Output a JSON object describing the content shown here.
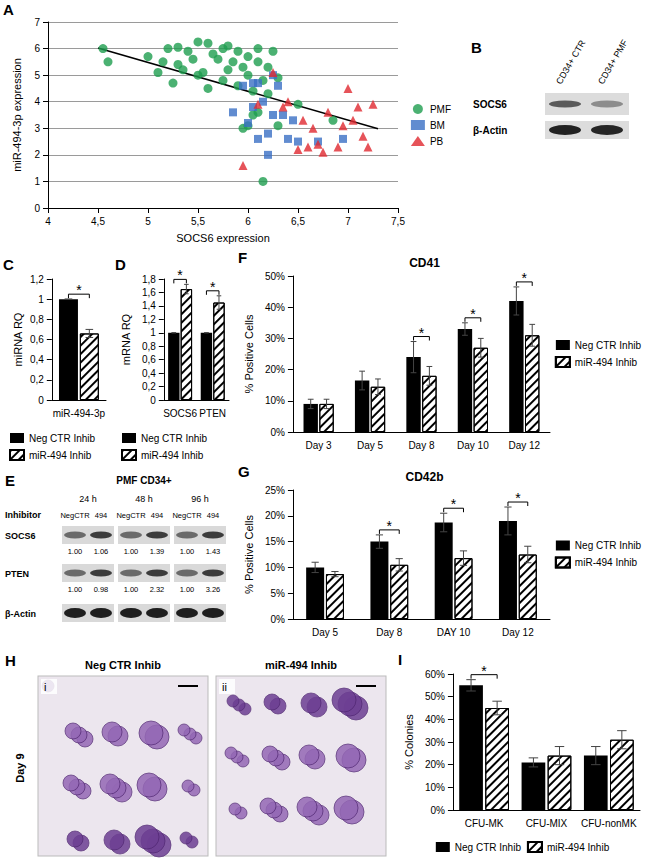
{
  "chart_data": [
    {
      "type": "scatter",
      "panel": "A",
      "x_label": "SOCS6 expression",
      "y_label": "miR-494-3p expression",
      "xlim": [
        4,
        7.5
      ],
      "xticks": [
        4,
        {
          "value": 4.5,
          "label": "4,5"
        },
        5,
        {
          "value": 5.5,
          "label": "5,5"
        },
        6,
        {
          "value": 6.5,
          "label": "6,5"
        },
        7,
        {
          "value": 7.5,
          "label": "7,5"
        }
      ],
      "ylim": [
        0,
        7
      ],
      "yticks": [
        0,
        1,
        2,
        3,
        4,
        5,
        6,
        7
      ],
      "grid": true,
      "legend": "right",
      "series": [
        {
          "name": "PMF",
          "color": "#1e9e4f",
          "marker": "circle",
          "values": [
            [
              4.55,
              6.0
            ],
            [
              4.6,
              5.5
            ],
            [
              5.0,
              5.7
            ],
            [
              5.1,
              5.1
            ],
            [
              5.15,
              5.5
            ],
            [
              5.2,
              6.0
            ],
            [
              5.25,
              4.7
            ],
            [
              5.3,
              5.4
            ],
            [
              5.3,
              6.05
            ],
            [
              5.35,
              5.2
            ],
            [
              5.4,
              5.9
            ],
            [
              5.45,
              5.6
            ],
            [
              5.5,
              6.25
            ],
            [
              5.5,
              5.0
            ],
            [
              5.55,
              5.1
            ],
            [
              5.6,
              6.2
            ],
            [
              5.6,
              4.5
            ],
            [
              5.65,
              5.8
            ],
            [
              5.7,
              5.6
            ],
            [
              5.75,
              6.0
            ],
            [
              5.75,
              4.8
            ],
            [
              5.8,
              5.2
            ],
            [
              5.8,
              6.1
            ],
            [
              5.85,
              5.5
            ],
            [
              5.9,
              5.9
            ],
            [
              5.9,
              4.6
            ],
            [
              5.95,
              5.3
            ],
            [
              6.0,
              5.7
            ],
            [
              6.0,
              5.0
            ],
            [
              6.05,
              4.4
            ],
            [
              6.1,
              5.5
            ],
            [
              6.1,
              6.0
            ],
            [
              6.15,
              4.8
            ],
            [
              6.2,
              5.3
            ],
            [
              6.2,
              4.3
            ],
            [
              6.25,
              5.9
            ],
            [
              6.3,
              4.9
            ],
            [
              5.95,
              3.0
            ],
            [
              6.0,
              3.1
            ],
            [
              6.05,
              3.5
            ],
            [
              6.1,
              3.6
            ],
            [
              6.3,
              3.1
            ],
            [
              6.5,
              3.9
            ],
            [
              6.85,
              3.3
            ],
            [
              6.15,
              1.0
            ]
          ]
        },
        {
          "name": "BM",
          "color": "#3a6fc4",
          "marker": "rect",
          "values": [
            [
              5.85,
              3.6
            ],
            [
              5.95,
              4.6
            ],
            [
              6.0,
              3.2
            ],
            [
              6.05,
              3.8
            ],
            [
              6.05,
              4.7
            ],
            [
              6.1,
              2.6
            ],
            [
              6.1,
              4.7
            ],
            [
              6.15,
              4.0
            ],
            [
              6.2,
              2.8
            ],
            [
              6.2,
              2.0
            ],
            [
              6.25,
              3.5
            ],
            [
              6.25,
              5.0
            ],
            [
              6.3,
              4.6
            ],
            [
              6.35,
              3.5
            ],
            [
              6.4,
              2.6
            ],
            [
              6.45,
              3.3
            ],
            [
              6.5,
              2.5
            ],
            [
              6.7,
              2.5
            ],
            [
              6.95,
              2.6
            ]
          ]
        },
        {
          "name": "PB",
          "color": "#e0282f",
          "marker": "triangle",
          "values": [
            [
              5.95,
              1.6
            ],
            [
              6.1,
              3.9
            ],
            [
              6.25,
              5.1
            ],
            [
              6.35,
              3.8
            ],
            [
              6.4,
              4.0
            ],
            [
              6.5,
              2.2
            ],
            [
              6.55,
              3.3
            ],
            [
              6.6,
              2.3
            ],
            [
              6.65,
              3.0
            ],
            [
              6.7,
              2.4
            ],
            [
              6.75,
              2.1
            ],
            [
              6.8,
              3.6
            ],
            [
              6.9,
              2.3
            ],
            [
              6.95,
              3.1
            ],
            [
              7.0,
              4.5
            ],
            [
              7.05,
              3.3
            ],
            [
              7.1,
              3.8
            ],
            [
              7.15,
              2.7
            ],
            [
              7.2,
              2.3
            ],
            [
              7.25,
              3.9
            ]
          ]
        }
      ],
      "trendline": {
        "x": [
          4.5,
          7.3
        ],
        "y": [
          6.02,
          2.98
        ],
        "color": "#000000"
      }
    },
    {
      "type": "bar",
      "panel": "C",
      "y_label": "miRNA RQ",
      "categories": [
        "miR-494-3p"
      ],
      "ylim": [
        0,
        1.2
      ],
      "yticks": [
        0,
        {
          "value": 0.2,
          "label": "0,2"
        },
        {
          "value": 0.4,
          "label": "0,4"
        },
        {
          "value": 0.6,
          "label": "0,6"
        },
        {
          "value": 0.8,
          "label": "0,8"
        },
        1,
        {
          "value": 1.2,
          "label": "1,2"
        }
      ],
      "grid": false,
      "legend": "bottom",
      "series": [
        {
          "name": "Neg CTR Inhib",
          "color": "#000000",
          "values": [
            1
          ],
          "errors": [
            0
          ]
        },
        {
          "name": "miR-494 Inhib",
          "color": "#ffffff",
          "values": [
            0.66
          ],
          "errors": [
            0.04
          ]
        }
      ],
      "annotations": [
        {
          "category": "miR-494-3p",
          "text": "*"
        }
      ]
    },
    {
      "type": "bar",
      "panel": "D",
      "y_label": "mRNA RQ",
      "categories": [
        "SOCS6",
        "PTEN"
      ],
      "ylim": [
        0,
        1.8
      ],
      "yticks": [
        0,
        {
          "value": 0.2,
          "label": "0,2"
        },
        {
          "value": 0.4,
          "label": "0,4"
        },
        {
          "value": 0.6,
          "label": "0,6"
        },
        {
          "value": 0.8,
          "label": "0,8"
        },
        1,
        {
          "value": 1.2,
          "label": "1,2"
        },
        {
          "value": 1.4,
          "label": "1,4"
        },
        {
          "value": 1.6,
          "label": "1,6"
        },
        {
          "value": 1.8,
          "label": "1,8"
        }
      ],
      "grid": false,
      "legend": "bottom",
      "series": [
        {
          "name": "Neg CTR Inhib",
          "color": "#000000",
          "values": [
            1,
            1
          ],
          "errors": [
            0,
            0
          ]
        },
        {
          "name": "miR-494 Inhib",
          "color": "#ffffff",
          "values": [
            1.65,
            1.45
          ],
          "errors": [
            0.07,
            0.1
          ]
        }
      ],
      "annotations": [
        {
          "category": "SOCS6",
          "text": "*"
        },
        {
          "category": "PTEN",
          "text": "*"
        }
      ]
    },
    {
      "type": "bar",
      "panel": "F",
      "title": "CD41",
      "y_label": "% Positive Cells",
      "categories": [
        "Day 3",
        "Day 5",
        "Day 8",
        "Day 10",
        "Day 12"
      ],
      "ylim": [
        0,
        50
      ],
      "yticks": [
        {
          "value": 0,
          "label": "0%"
        },
        {
          "value": 10,
          "label": "10%"
        },
        {
          "value": 20,
          "label": "20%"
        },
        {
          "value": 30,
          "label": "30%"
        },
        {
          "value": 40,
          "label": "40%"
        },
        {
          "value": 50,
          "label": "50%"
        }
      ],
      "grid": false,
      "legend": "right",
      "series": [
        {
          "name": "Neg CTR Inhib",
          "color": "#000000",
          "values": [
            9,
            16.5,
            24,
            33,
            42
          ],
          "errors": [
            1.5,
            3,
            5,
            2,
            4.5
          ]
        },
        {
          "name": "miR-494 Inhib",
          "color": "#ffffff",
          "values": [
            9,
            14.5,
            18,
            27,
            31
          ],
          "errors": [
            1.5,
            2.5,
            3,
            3,
            3.5
          ]
        }
      ],
      "annotations": [
        {
          "category": "Day 8",
          "text": "*"
        },
        {
          "category": "Day 10",
          "text": "*"
        },
        {
          "category": "Day 12",
          "text": "*"
        }
      ]
    },
    {
      "type": "bar",
      "panel": "G",
      "title": "CD42b",
      "y_label": "% Positive Cells",
      "categories": [
        "Day 5",
        "Day 8",
        "DAY 10",
        "Day 12"
      ],
      "ylim": [
        0,
        25
      ],
      "yticks": [
        {
          "value": 0,
          "label": "0%"
        },
        {
          "value": 5,
          "label": "5%"
        },
        {
          "value": 10,
          "label": "10%"
        },
        {
          "value": 15,
          "label": "15%"
        },
        {
          "value": 20,
          "label": "20%"
        },
        {
          "value": 25,
          "label": "25%"
        }
      ],
      "grid": false,
      "legend": "right",
      "series": [
        {
          "name": "Neg CTR Inhib",
          "color": "#000000",
          "values": [
            10,
            15,
            18.7,
            19
          ],
          "errors": [
            1,
            1.3,
            1.8,
            2.7
          ]
        },
        {
          "name": "miR-494 Inhib",
          "color": "#ffffff",
          "values": [
            8.7,
            10.5,
            11.8,
            12.5
          ],
          "errors": [
            0.5,
            1.2,
            1.4,
            1.6
          ]
        }
      ],
      "annotations": [
        {
          "category": "Day 8",
          "text": "*"
        },
        {
          "category": "DAY 10",
          "text": "*"
        },
        {
          "category": "Day 12",
          "text": "*"
        }
      ]
    },
    {
      "type": "bar",
      "panel": "I",
      "y_label": "% Colonies",
      "categories": [
        "CFU-MK",
        "CFU-MIX",
        "CFU-nonMK"
      ],
      "ylim": [
        0,
        60
      ],
      "yticks": [
        {
          "value": 0,
          "label": "0%"
        },
        {
          "value": 10,
          "label": "10%"
        },
        {
          "value": 20,
          "label": "20%"
        },
        {
          "value": 30,
          "label": "30%"
        },
        {
          "value": 40,
          "label": "40%"
        },
        {
          "value": 50,
          "label": "50%"
        },
        {
          "value": 60,
          "label": "60%"
        }
      ],
      "grid": false,
      "legend": "bottom",
      "series": [
        {
          "name": "Neg CTR Inhib",
          "color": "#000000",
          "values": [
            55,
            21,
            24
          ],
          "errors": [
            2.5,
            2,
            4
          ]
        },
        {
          "name": "miR-494 Inhib",
          "color": "#ffffff",
          "values": [
            45,
            24,
            31
          ],
          "errors": [
            3,
            4,
            4
          ]
        }
      ],
      "annotations": [
        {
          "category": "CFU-MK",
          "text": "*"
        }
      ]
    }
  ],
  "blots": [
    {
      "panel": "B",
      "lanes": [
        "CD34+ CTR",
        "CD34+ PMF"
      ],
      "rows": [
        {
          "label": "SOCS6"
        },
        {
          "label": "β-Actin"
        }
      ]
    },
    {
      "panel": "E",
      "title": "PMF CD34+",
      "lane_header": "Inhibitor",
      "groups": [
        {
          "label": "24 h",
          "lanes": [
            "NegCTR",
            "494"
          ]
        },
        {
          "label": "48 h",
          "lanes": [
            "NegCTR",
            "494"
          ]
        },
        {
          "label": "96 h",
          "lanes": [
            "NegCTR",
            "494"
          ]
        }
      ],
      "rows": [
        {
          "label": "SOCS6",
          "values": [
            "1.00",
            "1.06",
            "1.00",
            "1.39",
            "1.00",
            "1.43"
          ]
        },
        {
          "label": "PTEN",
          "values": [
            "1.00",
            "0.98",
            "1.00",
            "2.32",
            "1.00",
            "3.26"
          ]
        },
        {
          "label": "β-Actin"
        }
      ]
    }
  ],
  "micrographs": {
    "panel": "H",
    "side_label": "Day 9",
    "images": [
      {
        "label": "i",
        "title": "Neg CTR Inhib"
      },
      {
        "label": "ii",
        "title": "miR-494 Inhib"
      }
    ]
  }
}
